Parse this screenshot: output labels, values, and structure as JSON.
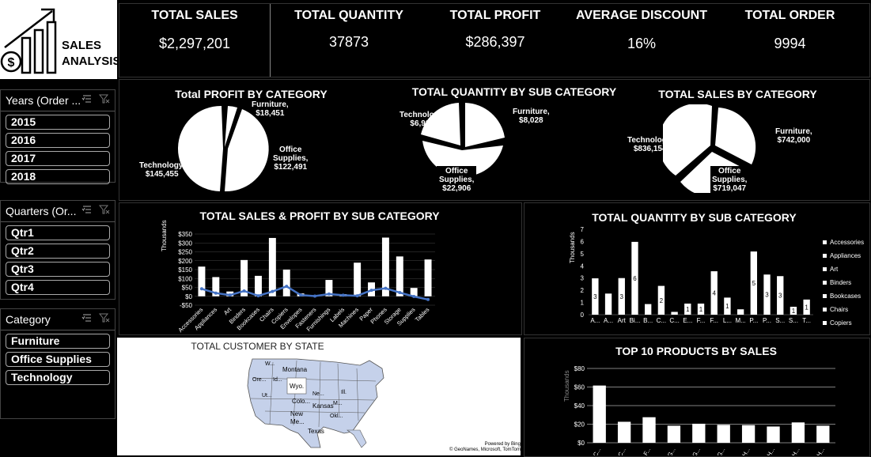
{
  "logo": {
    "line1": "SALES",
    "line2": "ANALYSIS"
  },
  "kpis": [
    {
      "title": "TOTAL SALES",
      "value": "$2,297,201"
    },
    {
      "title": "TOTAL QUANTITY",
      "value": "37873"
    },
    {
      "title": "TOTAL PROFIT",
      "value": "$286,397"
    },
    {
      "title": "AVERAGE DISCOUNT",
      "value": "16%"
    },
    {
      "title": "TOTAL ORDER",
      "value": "9994"
    }
  ],
  "slicers": {
    "years": {
      "title": "Years (Order ...",
      "items": [
        "2015",
        "2016",
        "2017",
        "2018"
      ]
    },
    "quarters": {
      "title": "Quarters (Or...",
      "items": [
        "Qtr1",
        "Qtr2",
        "Qtr3",
        "Qtr4"
      ]
    },
    "category": {
      "title": "Category",
      "items": [
        "Furniture",
        "Office Supplies",
        "Technology"
      ]
    }
  },
  "pies": {
    "profit": {
      "title": "Total PROFIT BY CATEGORY",
      "labels": [
        {
          "l1": "Furniture,",
          "l2": "$18,451"
        },
        {
          "l1": "Office",
          "l2": "Supplies,",
          "l3": "$122,491"
        },
        {
          "l1": "Technology,",
          "l2": "$145,455"
        }
      ]
    },
    "quantity": {
      "title": "TOTAL QUANTITY BY SUB CATEGORY",
      "labels": [
        {
          "l1": "Furniture,",
          "l2": "$8,028"
        },
        {
          "l1": "Office",
          "l2": "Supplies,",
          "l3": "$22,906"
        },
        {
          "l1": "Technology,",
          "l2": "$6,939"
        }
      ]
    },
    "sales": {
      "title": "TOTAL SALES BY CATEGORY",
      "labels": [
        {
          "l1": "Furniture,",
          "l2": "$742,000"
        },
        {
          "l1": "Office",
          "l2": "Supplies,",
          "l3": "$719,047"
        },
        {
          "l1": "Technology,",
          "l2": "$836,154"
        }
      ]
    }
  },
  "sales_profit": {
    "title": "TOTAL SALES & PROFIT BY SUB CATEGORY",
    "ylabel": "Thousands",
    "ticks": [
      "$350",
      "$300",
      "$250",
      "$200",
      "$150",
      "$100",
      "$50",
      "$0",
      "-$50"
    ]
  },
  "qty_sub": {
    "title": "TOTAL QUANTITY BY SUB CATEGORY",
    "ylabel": "Thousands",
    "ticks": [
      "7",
      "6",
      "5",
      "4",
      "3",
      "2",
      "1",
      "0"
    ],
    "legend": [
      "Accessories",
      "Appliances",
      "Art",
      "Binders",
      "Bookcases",
      "Chairs",
      "Copiers"
    ]
  },
  "map": {
    "title": "TOTAL CUSTOMER BY STATE",
    "labels": [
      "W...",
      "Montana",
      "Ore...",
      "Id...",
      "Wyo.",
      "Ne...",
      "Ut...",
      "Colo...",
      "Kansas",
      "New",
      "Me...",
      "Texas",
      "Okl...",
      "M...",
      "Ill."
    ],
    "credit1": "Powered by Bing",
    "credit2": "© GeoNames, Microsoft, TomTom"
  },
  "top10": {
    "title": "TOP 10 PRODUCTS BY SALES",
    "ylabel": "Thousands",
    "ticks": [
      "$80",
      "$60",
      "$40",
      "$20",
      "$0"
    ],
    "categories": [
      "C...",
      "C...",
      "F...",
      "G...",
      "G...",
      "G...",
      "H...",
      "H...",
      "H...",
      "H..."
    ]
  },
  "chart_data": [
    {
      "type": "bar",
      "title": "TOTAL SALES & PROFIT BY SUB CATEGORY",
      "ylabel": "Thousands",
      "ylim": [
        -50,
        350
      ],
      "categories": [
        "Accessories",
        "Appliances",
        "Art",
        "Binders",
        "Bookcases",
        "Chairs",
        "Copiers",
        "Envelopes",
        "Fasteners",
        "Furnishings",
        "Labels",
        "Machines",
        "Paper",
        "Phones",
        "Storage",
        "Supplies",
        "Tables"
      ],
      "series": [
        {
          "values": [
            167,
            108,
            27,
            204,
            115,
            328,
            150,
            16,
            3,
            92,
            12,
            189,
            78,
            330,
            224,
            47,
            207
          ]
        },
        {
          "values": [
            42,
            18,
            7,
            30,
            3,
            27,
            56,
            7,
            1,
            13,
            6,
            3,
            34,
            45,
            21,
            -1,
            -18
          ]
        }
      ]
    },
    {
      "type": "bar",
      "title": "TOTAL QUANTITY BY SUB CATEGORY",
      "ylabel": "Thousands",
      "ylim": [
        0,
        7
      ],
      "categories": [
        "A...",
        "A...",
        "Art",
        "Bi...",
        "B...",
        "C...",
        "C...",
        "E...",
        "F...",
        "F...",
        "L...",
        "M...",
        "P...",
        "P...",
        "S...",
        "S...",
        "T..."
      ],
      "series": [
        {
          "values": [
            2.98,
            1.73,
            3.0,
            5.97,
            0.87,
            2.36,
            0.23,
            0.91,
            0.91,
            3.56,
            1.4,
            0.44,
            5.18,
            3.29,
            3.16,
            0.65,
            1.24
          ]
        }
      ],
      "data_labels": [
        "3",
        "",
        "3",
        "6",
        "",
        "2",
        "",
        "1",
        "1",
        "4",
        "1",
        "",
        "5",
        "3",
        "3",
        "1",
        "1"
      ]
    },
    {
      "type": "bar",
      "title": "TOP 10 PRODUCTS BY SALES",
      "ylabel": "Thousands",
      "ylim": [
        0,
        80
      ],
      "categories": [
        "C...",
        "C...",
        "F...",
        "G...",
        "G...",
        "G...",
        "H...",
        "H...",
        "H...",
        "H..."
      ],
      "series": [
        {
          "values": [
            61.6,
            22.6,
            27.5,
            18.4,
            20.5,
            19.3,
            19.0,
            17.5,
            21.9,
            18.4
          ]
        }
      ]
    }
  ],
  "colors": {
    "bg": "#000000",
    "bar": "#ffffff",
    "profit_line": "#4472c4",
    "map_fill": "#c5d1ea"
  }
}
